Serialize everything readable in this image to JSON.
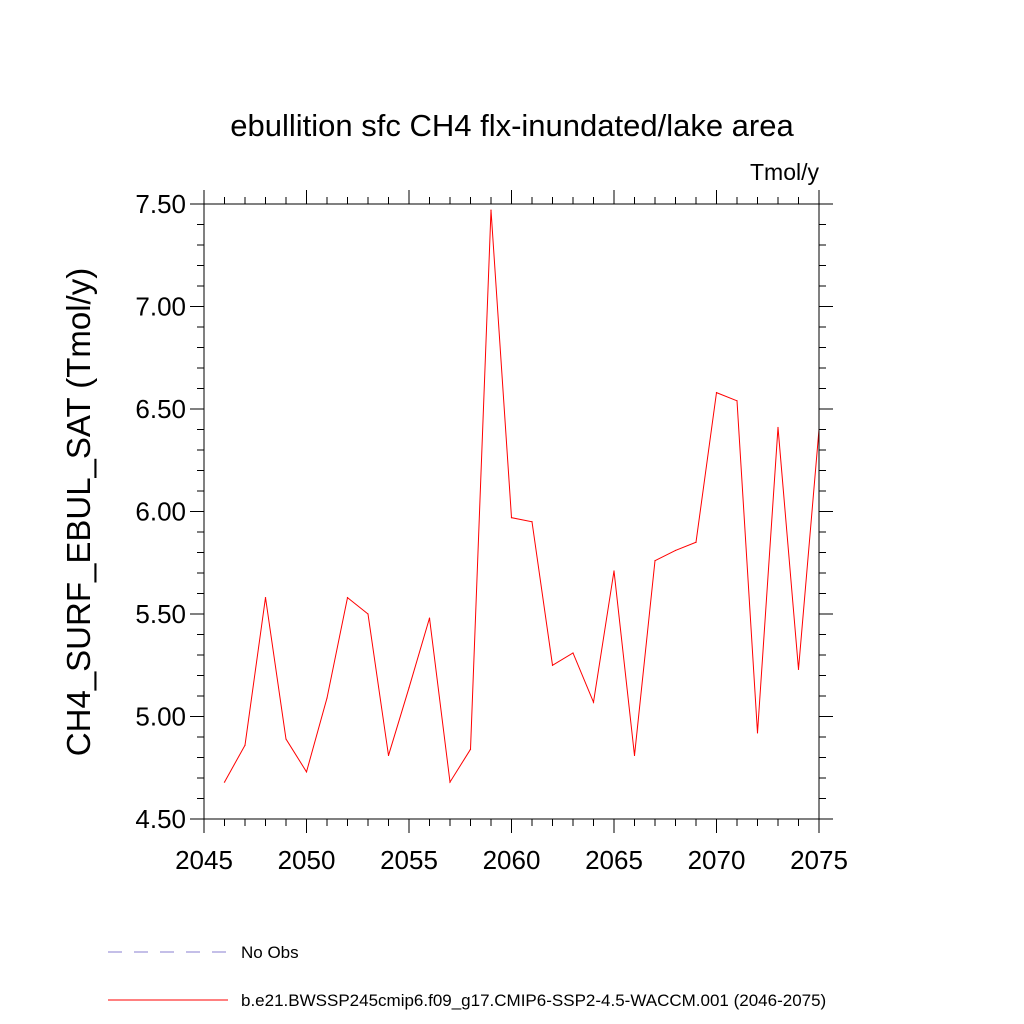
{
  "chart_data": {
    "type": "line",
    "title": "ebullition sfc CH4 flx-inundated/lake area",
    "units_label": "Tmol/y",
    "xlabel": "",
    "ylabel": "CH4_SURF_EBUL_SAT  (Tmol/y)",
    "xlim": [
      2045,
      2075
    ],
    "ylim": [
      4.5,
      7.5
    ],
    "x_ticks": [
      2045,
      2050,
      2055,
      2060,
      2065,
      2070,
      2075
    ],
    "x_tick_labels": [
      "2045",
      "2050",
      "2055",
      "2060",
      "2065",
      "2070",
      "2075"
    ],
    "y_ticks": [
      4.5,
      5.0,
      5.5,
      6.0,
      6.5,
      7.0,
      7.5
    ],
    "y_tick_labels": [
      "4.50",
      "5.00",
      "5.50",
      "6.00",
      "6.50",
      "7.00",
      "7.50"
    ],
    "grid": false,
    "legend_position": "bottom",
    "series": [
      {
        "name": "b.e21.BWSSP245cmip6.f09_g17.CMIP6-SSP2-4.5-WACCM.001 (2046-2075)",
        "color": "#ff0000",
        "style": "solid",
        "x": [
          2046,
          2047,
          2048,
          2049,
          2050,
          2051,
          2052,
          2053,
          2054,
          2055,
          2056,
          2057,
          2058,
          2059,
          2060,
          2061,
          2062,
          2063,
          2064,
          2065,
          2066,
          2067,
          2068,
          2069,
          2070,
          2071,
          2072,
          2073,
          2074,
          2075
        ],
        "y": [
          4.68,
          4.86,
          5.58,
          4.89,
          4.73,
          5.09,
          5.58,
          5.5,
          4.81,
          5.14,
          5.48,
          4.68,
          4.84,
          7.47,
          5.97,
          5.95,
          5.25,
          5.31,
          5.07,
          5.71,
          4.81,
          5.76,
          5.81,
          5.85,
          6.58,
          6.54,
          4.92,
          6.41,
          5.23,
          6.4
        ]
      },
      {
        "name": "No Obs",
        "color": "#8a7fd0",
        "style": "dashed",
        "x": [],
        "y": []
      }
    ]
  }
}
